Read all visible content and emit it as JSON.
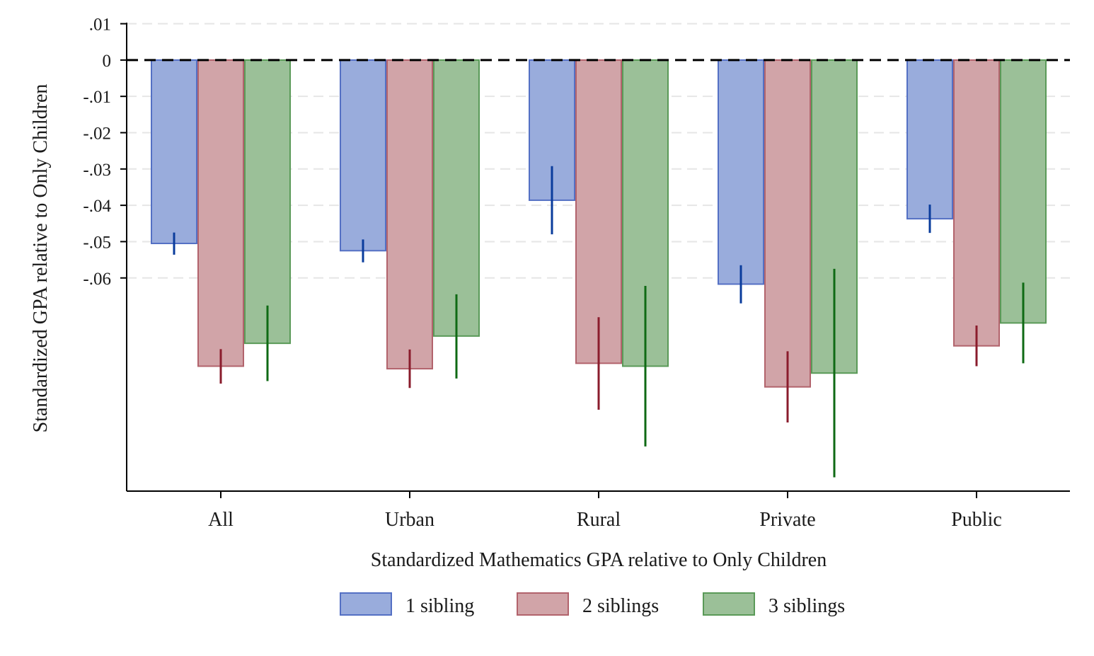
{
  "chart_data": {
    "type": "bar",
    "xlabel": "Standardized Mathematics GPA relative to Only Children",
    "ylabel": "Standardized GPA relative to Only Children",
    "categories": [
      "All",
      "Urban",
      "Rural",
      "Private",
      "Public"
    ],
    "y_ticks": [
      0.01,
      0,
      -0.01,
      -0.02,
      -0.03,
      -0.04,
      -0.05,
      -0.06
    ],
    "y_tick_labels": [
      ".01",
      "0",
      "-.01",
      "-.02",
      "-.03",
      "-.04",
      "-.05",
      "-.06"
    ],
    "ylim": [
      -0.1187,
      0.0103
    ],
    "grid": true,
    "reference_line": 0,
    "legend_position": "bottom",
    "series": [
      {
        "name": "1 sibling",
        "color": "#99acdc",
        "edge": "#5470c4",
        "ci_color": "#0a3c9c",
        "values": [
          -0.0505,
          -0.0525,
          -0.0386,
          -0.0617,
          -0.0437
        ],
        "ci_low": [
          -0.0536,
          -0.0557,
          -0.048,
          -0.067,
          -0.0476
        ],
        "ci_high": [
          -0.0475,
          -0.0494,
          -0.0292,
          -0.0565,
          -0.0398
        ]
      },
      {
        "name": "2 siblings",
        "color": "#d1a4a8",
        "edge": "#b2636c",
        "ci_color": "#8a1c2c",
        "values": [
          -0.0843,
          -0.085,
          -0.0835,
          -0.09,
          -0.0787
        ],
        "ci_low": [
          -0.0891,
          -0.0903,
          -0.0963,
          -0.0998,
          -0.0843
        ],
        "ci_high": [
          -0.0796,
          -0.0797,
          -0.0708,
          -0.0802,
          -0.0731
        ]
      },
      {
        "name": "3 siblings",
        "color": "#9bc098",
        "edge": "#5a9a58",
        "ci_color": "#0f6a14",
        "values": [
          -0.078,
          -0.076,
          -0.0843,
          -0.0862,
          -0.0724
        ],
        "ci_low": [
          -0.0884,
          -0.0877,
          -0.1064,
          -0.1149,
          -0.0835
        ],
        "ci_high": [
          -0.0676,
          -0.0645,
          -0.0622,
          -0.0575,
          -0.0613
        ]
      }
    ]
  }
}
